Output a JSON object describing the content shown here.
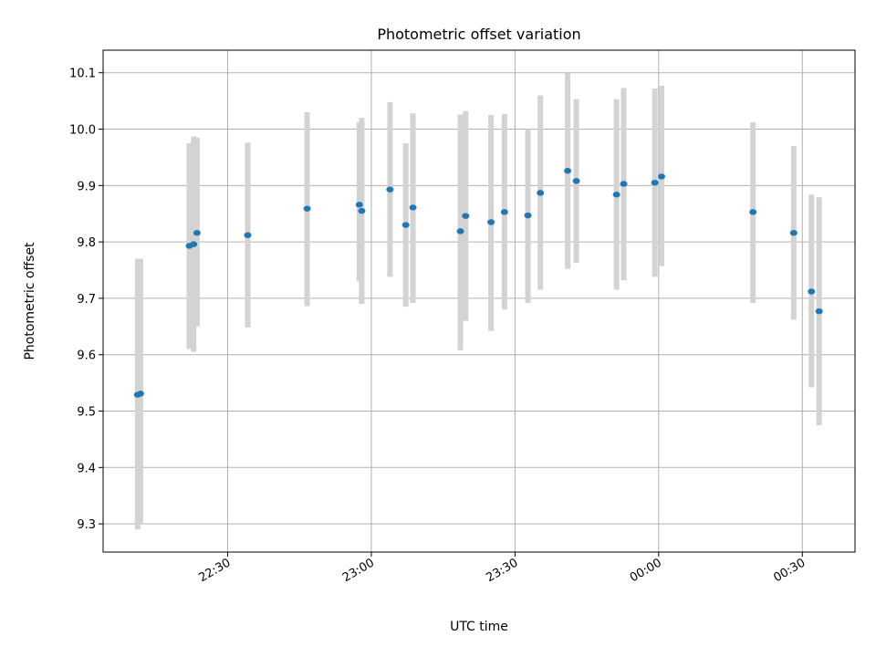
{
  "chart_data": {
    "type": "scatter",
    "title": "Photometric offset variation",
    "xlabel": "UTC time",
    "ylabel": "Photometric offset",
    "grid": true,
    "legend": "none",
    "colors": {
      "points": "#1f77b4",
      "errorbars": "#d3d3d3",
      "grid": "#b0b0b0"
    },
    "x_ticks": [
      "22:30",
      "23:00",
      "23:30",
      "00:00",
      "00:30"
    ],
    "x_tick_minutes": [
      1350,
      1380,
      1410,
      1440,
      1470
    ],
    "x_range_minutes": [
      1324,
      1481
    ],
    "x_unit": "minutes of UTC day (00:00 shown = 1440)",
    "y_ticks": [
      "9.3",
      "9.4",
      "9.5",
      "9.6",
      "9.7",
      "9.8",
      "9.9",
      "10.0",
      "10.1"
    ],
    "ylim": [
      9.25,
      10.14
    ],
    "points": [
      {
        "x": 1331.2,
        "y": 9.529,
        "ylo": 9.29,
        "yhi": 9.77
      },
      {
        "x": 1331.8,
        "y": 9.531,
        "ylo": 9.3,
        "yhi": 9.77
      },
      {
        "x": 1342.0,
        "y": 9.793,
        "ylo": 9.61,
        "yhi": 9.975
      },
      {
        "x": 1342.9,
        "y": 9.796,
        "ylo": 9.605,
        "yhi": 9.987
      },
      {
        "x": 1343.6,
        "y": 9.816,
        "ylo": 9.65,
        "yhi": 9.985
      },
      {
        "x": 1354.2,
        "y": 9.812,
        "ylo": 9.648,
        "yhi": 9.976
      },
      {
        "x": 1366.6,
        "y": 9.859,
        "ylo": 9.686,
        "yhi": 10.03
      },
      {
        "x": 1377.5,
        "y": 9.866,
        "ylo": 9.73,
        "yhi": 10.012
      },
      {
        "x": 1378.0,
        "y": 9.855,
        "ylo": 9.69,
        "yhi": 10.02
      },
      {
        "x": 1383.9,
        "y": 9.893,
        "ylo": 9.738,
        "yhi": 10.048
      },
      {
        "x": 1387.2,
        "y": 9.83,
        "ylo": 9.685,
        "yhi": 9.975
      },
      {
        "x": 1388.7,
        "y": 9.861,
        "ylo": 9.692,
        "yhi": 10.028
      },
      {
        "x": 1398.6,
        "y": 9.819,
        "ylo": 9.608,
        "yhi": 10.026
      },
      {
        "x": 1399.7,
        "y": 9.846,
        "ylo": 9.66,
        "yhi": 10.032
      },
      {
        "x": 1405.0,
        "y": 9.835,
        "ylo": 9.642,
        "yhi": 10.025
      },
      {
        "x": 1407.8,
        "y": 9.853,
        "ylo": 9.68,
        "yhi": 10.027
      },
      {
        "x": 1412.7,
        "y": 9.847,
        "ylo": 9.692,
        "yhi": 10.0
      },
      {
        "x": 1415.3,
        "y": 9.887,
        "ylo": 9.715,
        "yhi": 10.06
      },
      {
        "x": 1421.0,
        "y": 9.926,
        "ylo": 9.752,
        "yhi": 10.1
      },
      {
        "x": 1422.8,
        "y": 9.908,
        "ylo": 9.763,
        "yhi": 10.053
      },
      {
        "x": 1431.2,
        "y": 9.884,
        "ylo": 9.715,
        "yhi": 10.053
      },
      {
        "x": 1432.7,
        "y": 9.903,
        "ylo": 9.732,
        "yhi": 10.073
      },
      {
        "x": 1439.2,
        "y": 9.905,
        "ylo": 9.738,
        "yhi": 10.072
      },
      {
        "x": 1440.6,
        "y": 9.916,
        "ylo": 9.757,
        "yhi": 10.077
      },
      {
        "x": 1459.7,
        "y": 9.853,
        "ylo": 9.692,
        "yhi": 10.012
      },
      {
        "x": 1468.2,
        "y": 9.816,
        "ylo": 9.662,
        "yhi": 9.97
      },
      {
        "x": 1471.9,
        "y": 9.712,
        "ylo": 9.542,
        "yhi": 9.884
      },
      {
        "x": 1473.5,
        "y": 9.677,
        "ylo": 9.475,
        "yhi": 9.879
      }
    ]
  }
}
